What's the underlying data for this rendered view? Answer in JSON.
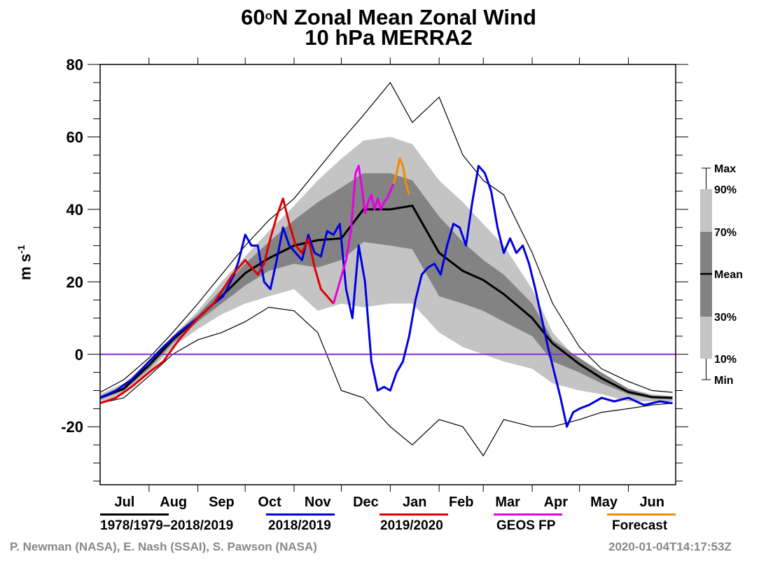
{
  "chart_data": {
    "type": "line",
    "title": "60°N Zonal Mean Zonal Wind",
    "title_parts": {
      "lat": "60",
      "degree": "o",
      "rest": "N Zonal Mean Zonal Wind"
    },
    "subtitle": "10 hPa   MERRA2",
    "xlabel": "",
    "ylabel": "m s",
    "ylabel_exp": "-1",
    "x_unit": "day of season (0 = Jul 1)",
    "xlim": [
      0,
      365
    ],
    "ylim": [
      -36,
      80
    ],
    "y_ticks": [
      -20,
      0,
      20,
      40,
      60,
      80
    ],
    "y_tick_labels": [
      "-20",
      "0",
      "20",
      "40",
      "60",
      "80"
    ],
    "y_minor_step": 5,
    "month_ticks": [
      0,
      31,
      62,
      92,
      123,
      153,
      184,
      215,
      243,
      274,
      304,
      335
    ],
    "month_labels": [
      "Jul",
      "Aug",
      "Sep",
      "Oct",
      "Nov",
      "Dec",
      "Jan",
      "Feb",
      "Mar",
      "Apr",
      "May",
      "Jun"
    ],
    "zero_line": {
      "value": 0,
      "color": "#8a2be2"
    },
    "grid": false,
    "legend_right": {
      "labels": [
        "Max",
        "90%",
        "70%",
        "Mean",
        "30%",
        "10%",
        "Min"
      ],
      "light_color": "#c4c4c4",
      "dark_color": "#838383"
    },
    "legend_bottom": [
      {
        "label": "1978/1979–2018/2019",
        "color": "#000000"
      },
      {
        "label": "2018/2019",
        "color": "#0000e0"
      },
      {
        "label": "2019/2020",
        "color": "#e00000"
      },
      {
        "label": "GEOS FP",
        "color": "#e600e6"
      },
      {
        "label": "Forecast",
        "color": "#f08c00"
      }
    ],
    "climatology": {
      "days": [
        0,
        15,
        31,
        46,
        62,
        77,
        92,
        107,
        123,
        138,
        153,
        167,
        184,
        198,
        215,
        230,
        243,
        256,
        274,
        287,
        304,
        318,
        335,
        350,
        363
      ],
      "max": [
        -10.5,
        -7,
        -1,
        6,
        14,
        22,
        30,
        37,
        43,
        51,
        59,
        66,
        75,
        64,
        71,
        55,
        48,
        44,
        28,
        14,
        2,
        -4,
        -7.5,
        -10,
        -10.5
      ],
      "p90": [
        -11,
        -8,
        -2,
        5,
        12,
        20,
        27,
        34,
        41,
        48,
        54,
        59,
        60,
        58,
        48,
        42,
        36,
        30,
        18,
        6,
        -2,
        -6,
        -9.5,
        -11,
        -11.5
      ],
      "p70": [
        -11.5,
        -9,
        -2.5,
        5,
        11,
        18,
        25,
        31,
        37,
        42,
        46,
        50,
        50,
        48,
        38,
        31,
        26,
        22,
        14,
        4,
        -1,
        -5,
        -9.5,
        -11.5,
        -12
      ],
      "mean": [
        -12,
        -9.5,
        -3,
        4,
        10,
        16,
        22.4,
        26.5,
        30,
        31.5,
        32,
        40,
        40,
        41,
        28,
        23,
        20.5,
        16.6,
        10,
        3,
        -2.7,
        -6.6,
        -10.4,
        -11.8,
        -12
      ],
      "p30": [
        -12.5,
        -10,
        -4,
        3,
        9,
        14,
        19,
        23,
        25,
        24,
        26,
        31,
        30,
        29,
        16,
        14,
        12,
        9,
        5,
        -2,
        -5,
        -8,
        -11,
        -12.3,
        -12.5
      ],
      "p10": [
        -13,
        -11,
        -5,
        2,
        7,
        11,
        14,
        16,
        18,
        12,
        14,
        13,
        14,
        14,
        6,
        2,
        0,
        -2,
        -4,
        -8,
        -10,
        -11,
        -13,
        -13,
        -13
      ],
      "min": [
        -13.5,
        -12,
        -6,
        0,
        4,
        6,
        9,
        13,
        12,
        6,
        -10,
        -12,
        -20,
        -25,
        -18,
        -20,
        -28,
        -18,
        -20,
        -20,
        -18,
        -16,
        -15,
        -14,
        -13.5
      ]
    },
    "series": [
      {
        "name": "2018/2019",
        "color": "#0000e0",
        "x": [
          0,
          10,
          20,
          31,
          40,
          50,
          62,
          72,
          78,
          85,
          88,
          92,
          96,
          100,
          104,
          108,
          112,
          116,
          120,
          124,
          128,
          132,
          136,
          140,
          144,
          148,
          152,
          156,
          160,
          164,
          168,
          172,
          176,
          180,
          184,
          188,
          192,
          196,
          200,
          204,
          208,
          212,
          216,
          220,
          224,
          228,
          232,
          236,
          240,
          244,
          248,
          252,
          256,
          260,
          264,
          268,
          272,
          276,
          280,
          284,
          288,
          292,
          296,
          300,
          304,
          310,
          318,
          326,
          335,
          345,
          355,
          363
        ],
        "y": [
          -12,
          -10,
          -7,
          -2,
          2,
          6,
          10,
          14,
          16,
          22,
          26,
          33,
          30,
          30,
          20,
          18,
          26,
          35,
          30,
          28,
          26,
          33,
          28,
          27,
          34,
          33,
          36,
          18,
          10,
          30,
          20,
          -2,
          -10,
          -9,
          -10,
          -5,
          -2,
          5,
          15,
          22,
          24,
          25,
          22,
          30,
          36,
          35,
          30,
          42,
          52,
          50,
          45,
          35,
          28,
          32,
          28,
          30,
          25,
          18,
          10,
          2,
          -5,
          -12,
          -20,
          -16,
          -15,
          -14,
          -12,
          -13,
          -12,
          -14,
          -13,
          -13.5
        ]
      },
      {
        "name": "2019/2020",
        "color": "#e00000",
        "x": [
          0,
          10,
          20,
          31,
          40,
          50,
          62,
          72,
          78,
          84,
          88,
          92,
          96,
          100,
          104,
          108,
          112,
          116,
          120,
          124,
          128,
          132,
          136,
          140,
          144,
          148
        ],
        "y": [
          -13.5,
          -12,
          -9,
          -5,
          -2,
          4,
          10,
          14,
          18,
          22,
          24,
          26,
          24,
          22,
          25,
          32,
          38,
          43,
          36,
          30,
          28,
          32,
          24,
          18,
          16,
          14
        ]
      },
      {
        "name": "GEOS FP",
        "color": "#e600e6",
        "x": [
          148,
          152,
          156,
          159,
          162,
          164,
          166,
          168,
          170,
          172,
          174,
          176,
          178,
          180,
          182,
          184,
          186
        ],
        "y": [
          14,
          20,
          26,
          34,
          50,
          52,
          46,
          39,
          42,
          44,
          40,
          43,
          40,
          42,
          43,
          45,
          47
        ]
      },
      {
        "name": "Forecast",
        "color": "#f08c00",
        "x": [
          186,
          188,
          190,
          192,
          194,
          196
        ],
        "y": [
          47,
          50,
          54,
          52,
          47,
          44
        ]
      }
    ]
  },
  "credits": {
    "authors": "P. Newman (NASA), E. Nash (SSAI), S. Pawson (NASA)",
    "timestamp": "2020-01-04T14:17:53Z"
  }
}
